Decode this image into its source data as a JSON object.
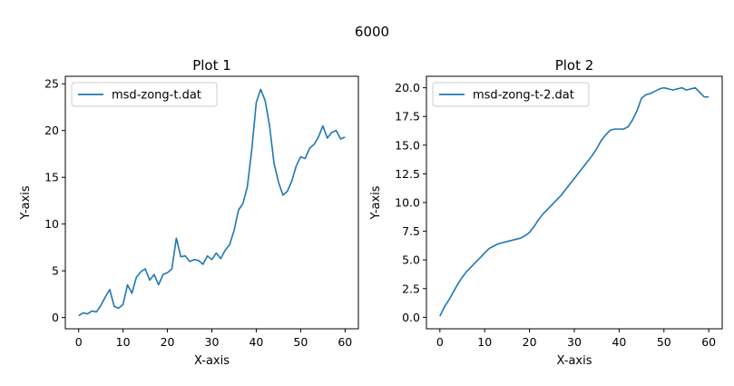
{
  "figure": {
    "suptitle": "6000"
  },
  "chart_data": [
    {
      "type": "line",
      "title": "Plot 1",
      "xlabel": "X-axis",
      "ylabel": "Y-axis",
      "xlim": [
        -3,
        63
      ],
      "ylim": [
        -1.2,
        25.8
      ],
      "xticks": [
        0,
        10,
        20,
        30,
        40,
        50,
        60
      ],
      "yticks": [
        0,
        5,
        10,
        15,
        20,
        25
      ],
      "xtick_labels": [
        "0",
        "10",
        "20",
        "30",
        "40",
        "50",
        "60"
      ],
      "ytick_labels": [
        "0",
        "5",
        "10",
        "15",
        "20",
        "25"
      ],
      "legend_placement": "upper-left",
      "color": "#1f77b4",
      "series": [
        {
          "name": "msd-zong-t.dat",
          "x": [
            0,
            1,
            2,
            3,
            4,
            5,
            6,
            7,
            8,
            9,
            10,
            11,
            12,
            13,
            14,
            15,
            16,
            17,
            18,
            19,
            20,
            21,
            22,
            23,
            24,
            25,
            26,
            27,
            28,
            29,
            30,
            31,
            32,
            33,
            34,
            35,
            36,
            37,
            38,
            39,
            40,
            41,
            42,
            43,
            44,
            45,
            46,
            47,
            48,
            49,
            50,
            51,
            52,
            53,
            54,
            55,
            56,
            57,
            58,
            59,
            60
          ],
          "y": [
            0.2,
            0.5,
            0.4,
            0.7,
            0.6,
            1.3,
            2.2,
            3.0,
            1.2,
            1.0,
            1.4,
            3.5,
            2.6,
            4.3,
            4.9,
            5.2,
            4.0,
            4.6,
            3.5,
            4.6,
            4.8,
            5.2,
            8.5,
            6.5,
            6.6,
            6.0,
            6.2,
            6.1,
            5.7,
            6.6,
            6.2,
            6.9,
            6.3,
            7.2,
            7.8,
            9.3,
            11.5,
            12.2,
            14.0,
            18.0,
            23.0,
            24.4,
            23.2,
            20.5,
            16.5,
            14.5,
            13.1,
            13.5,
            14.6,
            16.2,
            17.2,
            17.0,
            18.1,
            18.5,
            19.3,
            20.5,
            19.2,
            19.8,
            20.0,
            19.1,
            19.3
          ]
        }
      ]
    },
    {
      "type": "line",
      "title": "Plot 2",
      "xlabel": "X-axis",
      "ylabel": "Y-axis",
      "xlim": [
        -3,
        63
      ],
      "ylim": [
        -1.0,
        21.0
      ],
      "xticks": [
        0,
        10,
        20,
        30,
        40,
        50,
        60
      ],
      "yticks": [
        0.0,
        2.5,
        5.0,
        7.5,
        10.0,
        12.5,
        15.0,
        17.5,
        20.0
      ],
      "xtick_labels": [
        "0",
        "10",
        "20",
        "30",
        "40",
        "50",
        "60"
      ],
      "ytick_labels": [
        "0.0",
        "2.5",
        "5.0",
        "7.5",
        "10.0",
        "12.5",
        "15.0",
        "17.5",
        "20.0"
      ],
      "legend_placement": "upper-left",
      "color": "#1f77b4",
      "series": [
        {
          "name": "msd-zong-t-2.dat",
          "x": [
            0,
            1,
            2,
            3,
            4,
            5,
            6,
            7,
            8,
            9,
            10,
            11,
            12,
            13,
            14,
            15,
            16,
            17,
            18,
            19,
            20,
            21,
            22,
            23,
            24,
            25,
            26,
            27,
            28,
            29,
            30,
            31,
            32,
            33,
            34,
            35,
            36,
            37,
            38,
            39,
            40,
            41,
            42,
            43,
            44,
            45,
            46,
            47,
            48,
            49,
            50,
            51,
            52,
            53,
            54,
            55,
            56,
            57,
            58,
            59,
            60
          ],
          "y": [
            0.1,
            0.9,
            1.5,
            2.2,
            2.9,
            3.5,
            4.0,
            4.4,
            4.8,
            5.2,
            5.6,
            6.0,
            6.2,
            6.4,
            6.5,
            6.6,
            6.7,
            6.8,
            6.9,
            7.1,
            7.4,
            7.9,
            8.5,
            9.0,
            9.4,
            9.8,
            10.2,
            10.6,
            11.1,
            11.6,
            12.1,
            12.6,
            13.1,
            13.6,
            14.1,
            14.7,
            15.4,
            15.9,
            16.3,
            16.4,
            16.4,
            16.4,
            16.6,
            17.2,
            18.0,
            19.1,
            19.4,
            19.5,
            19.7,
            19.9,
            20.0,
            19.9,
            19.8,
            19.9,
            20.0,
            19.8,
            19.9,
            20.0,
            19.6,
            19.2,
            19.2
          ]
        }
      ]
    }
  ]
}
